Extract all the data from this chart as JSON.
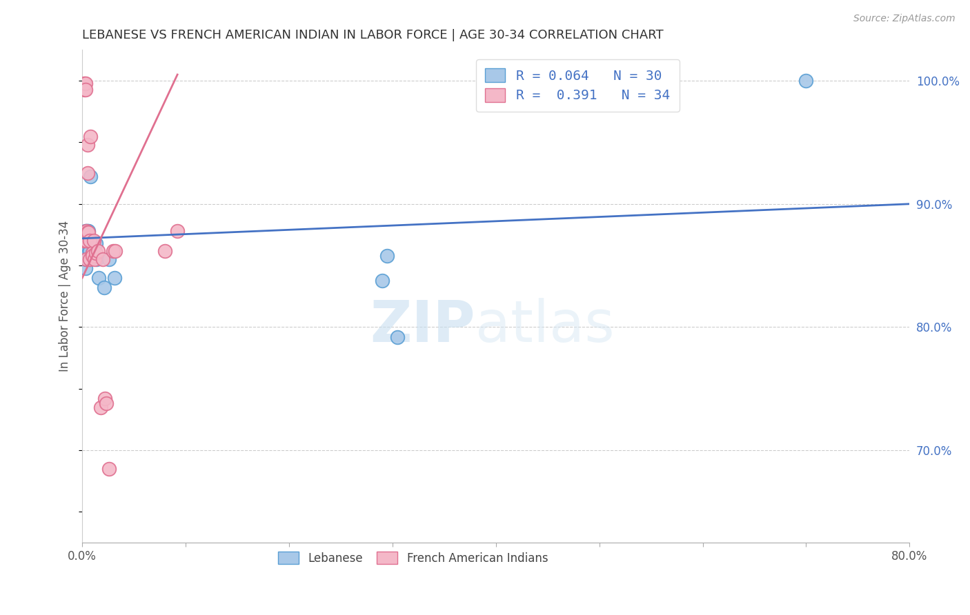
{
  "title": "LEBANESE VS FRENCH AMERICAN INDIAN IN LABOR FORCE | AGE 30-34 CORRELATION CHART",
  "source": "Source: ZipAtlas.com",
  "ylabel": "In Labor Force | Age 30-34",
  "xlim": [
    0.0,
    0.8
  ],
  "ylim": [
    0.625,
    1.025
  ],
  "xticks": [
    0.0,
    0.1,
    0.2,
    0.3,
    0.4,
    0.5,
    0.6,
    0.7,
    0.8
  ],
  "yticks_right": [
    0.7,
    0.8,
    0.9,
    1.0
  ],
  "ytick_right_labels": [
    "70.0%",
    "80.0%",
    "90.0%",
    "100.0%"
  ],
  "watermark_zip": "ZIP",
  "watermark_atlas": "atlas",
  "blue_color": "#a8c8e8",
  "blue_edge_color": "#5a9fd4",
  "pink_color": "#f4b8c8",
  "pink_edge_color": "#e07090",
  "blue_line_color": "#4472c4",
  "pink_line_color": "#e07090",
  "right_axis_color": "#4472c4",
  "legend_text_color": "#4472c4",
  "legend_label1": "Lebanese",
  "legend_label2": "French American Indians",
  "blue_x": [
    0.002,
    0.002,
    0.002,
    0.003,
    0.003,
    0.003,
    0.003,
    0.004,
    0.004,
    0.004,
    0.005,
    0.005,
    0.006,
    0.006,
    0.007,
    0.007,
    0.008,
    0.009,
    0.01,
    0.011,
    0.013,
    0.014,
    0.016,
    0.021,
    0.026,
    0.031,
    0.29,
    0.295,
    0.305,
    0.7
  ],
  "blue_y": [
    0.87,
    0.862,
    0.855,
    0.878,
    0.87,
    0.855,
    0.848,
    0.878,
    0.862,
    0.855,
    0.878,
    0.862,
    0.878,
    0.86,
    0.862,
    0.855,
    0.922,
    0.87,
    0.86,
    0.858,
    0.868,
    0.855,
    0.84,
    0.832,
    0.855,
    0.84,
    0.838,
    0.858,
    0.792,
    1.0
  ],
  "pink_x": [
    0.001,
    0.001,
    0.002,
    0.002,
    0.002,
    0.003,
    0.003,
    0.003,
    0.003,
    0.004,
    0.004,
    0.004,
    0.005,
    0.005,
    0.005,
    0.006,
    0.007,
    0.007,
    0.008,
    0.01,
    0.01,
    0.011,
    0.012,
    0.013,
    0.015,
    0.018,
    0.02,
    0.022,
    0.023,
    0.026,
    0.03,
    0.032,
    0.08,
    0.092
  ],
  "pink_y": [
    0.877,
    0.87,
    0.998,
    0.993,
    0.87,
    0.998,
    0.993,
    0.877,
    0.87,
    0.878,
    0.87,
    0.855,
    0.948,
    0.925,
    0.877,
    0.877,
    0.87,
    0.855,
    0.955,
    0.86,
    0.858,
    0.87,
    0.855,
    0.86,
    0.862,
    0.735,
    0.855,
    0.742,
    0.738,
    0.685,
    0.862,
    0.862,
    0.862,
    0.878
  ],
  "blue_trend_x": [
    0.0,
    0.8
  ],
  "blue_trend_y": [
    0.872,
    0.9
  ],
  "pink_trend_x": [
    0.0,
    0.092
  ],
  "pink_trend_y": [
    0.84,
    1.005
  ]
}
